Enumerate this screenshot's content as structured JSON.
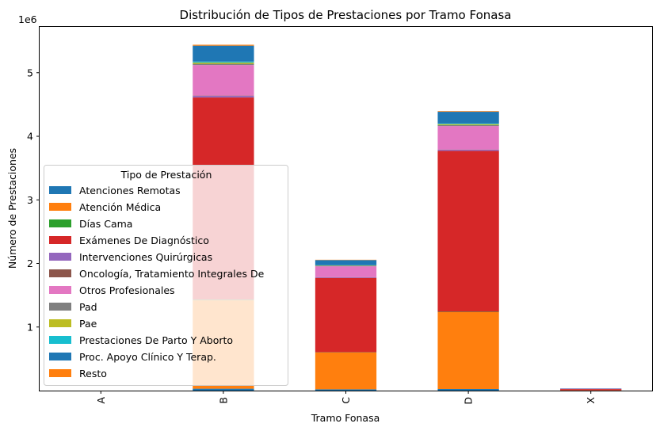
{
  "chart_data": {
    "type": "bar",
    "stacked": true,
    "title": "Distribución de Tipos de Prestaciones por Tramo Fonasa",
    "xlabel": "Tramo Fonasa",
    "ylabel": "Número de Prestaciones",
    "y_offset_label": "1e6",
    "categories": [
      "A",
      "B",
      "C",
      "D",
      "X"
    ],
    "yticks": [
      1,
      2,
      3,
      4,
      5
    ],
    "ytick_scale": 1000000,
    "ylim": [
      0,
      5720000
    ],
    "grid": false,
    "legend": {
      "title": "Tipo de Prestación",
      "placement": "center-left"
    },
    "series": [
      {
        "name": "Atenciones Remotas",
        "color": "#1f77b4",
        "values": [
          0,
          30000,
          20000,
          25000,
          1000
        ]
      },
      {
        "name": "Atención Médica",
        "color": "#ff7f0e",
        "values": [
          0,
          1390000,
          580000,
          1210000,
          3000
        ]
      },
      {
        "name": "Días Cama",
        "color": "#2ca02c",
        "values": [
          0,
          10000,
          3000,
          5000,
          0
        ]
      },
      {
        "name": "Exámenes De Diagnóstico",
        "color": "#d62728",
        "values": [
          0,
          3180000,
          1170000,
          2530000,
          20000
        ]
      },
      {
        "name": "Intervenciones Quirúrgicas",
        "color": "#9467bd",
        "values": [
          0,
          25000,
          10000,
          18000,
          1000
        ]
      },
      {
        "name": "Oncología, Tratamiento Integrales De",
        "color": "#8c564b",
        "values": [
          0,
          5000,
          2000,
          3000,
          0
        ]
      },
      {
        "name": "Otros Profesionales",
        "color": "#e377c2",
        "values": [
          0,
          480000,
          170000,
          370000,
          5000
        ]
      },
      {
        "name": "Pad",
        "color": "#7f7f7f",
        "values": [
          0,
          20000,
          8000,
          15000,
          0
        ]
      },
      {
        "name": "Pae",
        "color": "#bcbd22",
        "values": [
          0,
          20000,
          5000,
          15000,
          0
        ]
      },
      {
        "name": "Prestaciones De Parto Y Aborto",
        "color": "#17becf",
        "values": [
          0,
          15000,
          5000,
          10000,
          0
        ]
      },
      {
        "name": "Proc. Apoyo Clínico Y Terap.",
        "color": "#1f77b4",
        "values": [
          0,
          250000,
          80000,
          185000,
          5000
        ]
      },
      {
        "name": "Resto",
        "color": "#ff7f0e",
        "values": [
          0,
          15000,
          5000,
          10000,
          0
        ]
      }
    ]
  }
}
